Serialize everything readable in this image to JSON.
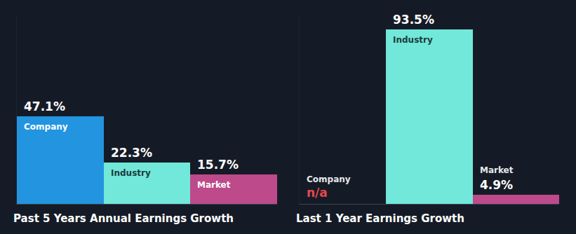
{
  "chart_data": [
    {
      "type": "bar",
      "xlabel": "Past 5 Years Annual Earnings Growth",
      "categories": [
        "Company",
        "Industry",
        "Market"
      ],
      "values": [
        47.1,
        22.3,
        15.7
      ],
      "value_labels": [
        "47.1%",
        "22.3%",
        "15.7%"
      ],
      "colors": [
        "#2394df",
        "#71e8d9",
        "#bd4a8a"
      ],
      "ylim": [
        0,
        100
      ],
      "data_labels": true,
      "tick_labels": false,
      "grid": false
    },
    {
      "type": "bar",
      "xlabel": "Last 1 Year Earnings Growth",
      "categories": [
        "Company",
        "Industry",
        "Market"
      ],
      "values": [
        null,
        93.5,
        4.9
      ],
      "value_labels": [
        "n/a",
        "93.5%",
        "4.9%"
      ],
      "colors": [
        "#2394df",
        "#71e8d9",
        "#bd4a8a"
      ],
      "ylim": [
        0,
        100
      ],
      "data_labels": true,
      "tick_labels": false,
      "grid": false
    }
  ]
}
